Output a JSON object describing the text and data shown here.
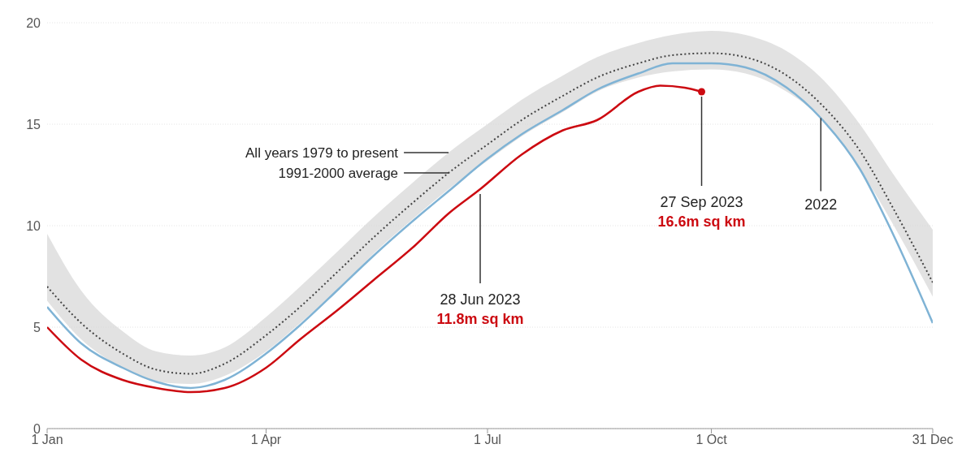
{
  "chart_data": {
    "type": "line",
    "x": [
      "--01-01",
      "--01-15",
      "--02-01",
      "--02-15",
      "--03-01",
      "--03-15",
      "--04-01",
      "--04-15",
      "--05-01",
      "--05-15",
      "--06-01",
      "--06-15",
      "--07-01",
      "--07-15",
      "--08-01",
      "--08-15",
      "--09-01",
      "--09-15",
      "--10-01",
      "--10-15",
      "--11-01",
      "--11-15",
      "--12-01",
      "--12-15",
      "--12-31"
    ],
    "series": [
      {
        "name": "1991-2000 average",
        "color": "#444444",
        "line_style": "dotted",
        "values": [
          7.0,
          5.2,
          3.7,
          2.9,
          2.7,
          3.2,
          4.6,
          6.0,
          7.8,
          9.4,
          11.2,
          12.6,
          14.0,
          15.2,
          16.4,
          17.3,
          18.0,
          18.4,
          18.5,
          18.3,
          17.4,
          16.0,
          13.7,
          10.8,
          7.2
        ],
        "lower": [
          6.3,
          4.4,
          3.0,
          2.3,
          2.2,
          2.6,
          3.8,
          5.2,
          6.9,
          8.6,
          10.4,
          11.8,
          13.2,
          14.4,
          15.6,
          16.6,
          17.3,
          17.6,
          17.7,
          17.5,
          16.6,
          15.3,
          12.8,
          10.0,
          6.5
        ],
        "upper": [
          9.6,
          6.8,
          4.8,
          3.8,
          3.6,
          4.0,
          5.5,
          7.0,
          8.8,
          10.4,
          12.2,
          13.6,
          15.0,
          16.2,
          17.4,
          18.3,
          19.0,
          19.4,
          19.6,
          19.4,
          18.6,
          17.3,
          15.0,
          12.5,
          9.8
        ]
      },
      {
        "name": "2022",
        "color": "#7fb3d5",
        "values": [
          6.0,
          4.2,
          3.0,
          2.3,
          2.0,
          2.4,
          3.7,
          5.1,
          6.9,
          8.5,
          10.3,
          11.7,
          13.3,
          14.5,
          15.7,
          16.7,
          17.5,
          18.0,
          18.0,
          17.8,
          16.8,
          15.3,
          12.8,
          9.5,
          5.2
        ]
      },
      {
        "color": "#cc0a11",
        "x": [
          "--01-01",
          "--01-15",
          "--02-01",
          "--02-15",
          "--03-01",
          "--03-15",
          "--04-01",
          "--04-15",
          "--05-01",
          "--05-15",
          "--06-01",
          "--06-15",
          "--06-28",
          "--07-15",
          "--08-01",
          "--08-15",
          "--09-01",
          "--09-10",
          "--09-20",
          "--09-27"
        ],
        "values": [
          5.0,
          3.4,
          2.4,
          2.0,
          1.8,
          2.0,
          3.0,
          4.4,
          5.9,
          7.3,
          9.0,
          10.6,
          11.8,
          13.5,
          14.7,
          15.2,
          16.6,
          16.9,
          16.8,
          16.6
        ]
      }
    ],
    "xlim": [
      "--01-01",
      "--12-31"
    ],
    "xticks": [
      {
        "value": "--01-01",
        "label": "1 Jan"
      },
      {
        "value": "--04-01",
        "label": "1 Apr"
      },
      {
        "value": "--07-01",
        "label": "1 Jul"
      },
      {
        "value": "--10-01",
        "label": "1 Oct"
      },
      {
        "value": "--12-31",
        "label": "31 Dec"
      }
    ],
    "ylim": [
      0,
      20
    ],
    "yticks": [
      0,
      5,
      10,
      15,
      20
    ],
    "grid": "y",
    "annotations": [
      {
        "text": "All years 1979 to present",
        "x": "--06-15",
        "y": 13.6
      },
      {
        "text": "28 Jun 2023",
        "x": "--06-28",
        "y": 11.8
      },
      "11.8m sq km",
      {
        "text": "27 Sep 2023",
        "x": "--09-27",
        "y": 16.6
      },
      "16.6m sq km"
    ]
  }
}
